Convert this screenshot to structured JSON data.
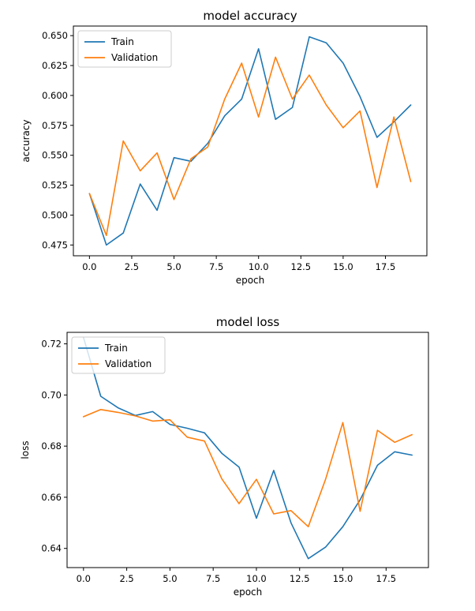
{
  "chart_data": [
    {
      "type": "line",
      "title": "model accuracy",
      "xlabel": "epoch",
      "ylabel": "accuracy",
      "xlim": [
        -0.95,
        19.95
      ],
      "ylim": [
        0.466,
        0.658
      ],
      "x_ticks": [
        0,
        2.5,
        5,
        7.5,
        10,
        12.5,
        15,
        17.5
      ],
      "x_tick_labels": [
        "0.0",
        "2.5",
        "5.0",
        "7.5",
        "10.0",
        "12.5",
        "15.0",
        "17.5"
      ],
      "y_ticks": [
        0.475,
        0.5,
        0.525,
        0.55,
        0.575,
        0.6,
        0.625,
        0.65
      ],
      "y_tick_labels": [
        "0.475",
        "0.500",
        "0.525",
        "0.550",
        "0.575",
        "0.600",
        "0.625",
        "0.650"
      ],
      "grid": false,
      "legend_position": "upper left",
      "x": [
        0,
        1,
        2,
        3,
        4,
        5,
        6,
        7,
        8,
        9,
        10,
        11,
        12,
        13,
        14,
        15,
        16,
        17,
        18,
        19
      ],
      "series": [
        {
          "name": "Train",
          "color": "#1f77b4",
          "values": [
            0.518,
            0.475,
            0.485,
            0.526,
            0.504,
            0.548,
            0.545,
            0.56,
            0.583,
            0.597,
            0.639,
            0.58,
            0.59,
            0.649,
            0.644,
            0.627,
            0.599,
            0.565,
            0.578,
            0.592
          ]
        },
        {
          "name": "Validation",
          "color": "#ff7f0e",
          "values": [
            0.518,
            0.483,
            0.562,
            0.537,
            0.552,
            0.513,
            0.547,
            0.557,
            0.597,
            0.627,
            0.582,
            0.632,
            0.597,
            0.617,
            0.592,
            0.573,
            0.587,
            0.523,
            0.582,
            0.528
          ]
        }
      ]
    },
    {
      "type": "line",
      "title": "model loss",
      "xlabel": "epoch",
      "ylabel": "loss",
      "xlim": [
        -0.95,
        19.95
      ],
      "ylim": [
        0.6325,
        0.7245
      ],
      "x_ticks": [
        0,
        2.5,
        5,
        7.5,
        10,
        12.5,
        15,
        17.5
      ],
      "x_tick_labels": [
        "0.0",
        "2.5",
        "5.0",
        "7.5",
        "10.0",
        "12.5",
        "15.0",
        "17.5"
      ],
      "y_ticks": [
        0.64,
        0.66,
        0.68,
        0.7,
        0.72
      ],
      "y_tick_labels": [
        "0.64",
        "0.66",
        "0.68",
        "0.70",
        "0.72"
      ],
      "grid": false,
      "legend_position": "upper left",
      "x": [
        0,
        1,
        2,
        3,
        4,
        5,
        6,
        7,
        8,
        9,
        10,
        11,
        12,
        13,
        14,
        15,
        16,
        17,
        18,
        19
      ],
      "series": [
        {
          "name": "Train",
          "color": "#1f77b4",
          "values": [
            0.7225,
            0.6995,
            0.695,
            0.692,
            0.6935,
            0.6885,
            0.687,
            0.6852,
            0.6772,
            0.6718,
            0.6518,
            0.6705,
            0.65,
            0.636,
            0.6405,
            0.6485,
            0.659,
            0.6725,
            0.6778,
            0.6765
          ]
        },
        {
          "name": "Validation",
          "color": "#ff7f0e",
          "values": [
            0.6915,
            0.6943,
            0.6932,
            0.6918,
            0.6898,
            0.6903,
            0.6835,
            0.682,
            0.6672,
            0.6575,
            0.667,
            0.6535,
            0.6548,
            0.6485,
            0.667,
            0.6892,
            0.6545,
            0.6862,
            0.6815,
            0.6845
          ]
        }
      ]
    }
  ]
}
